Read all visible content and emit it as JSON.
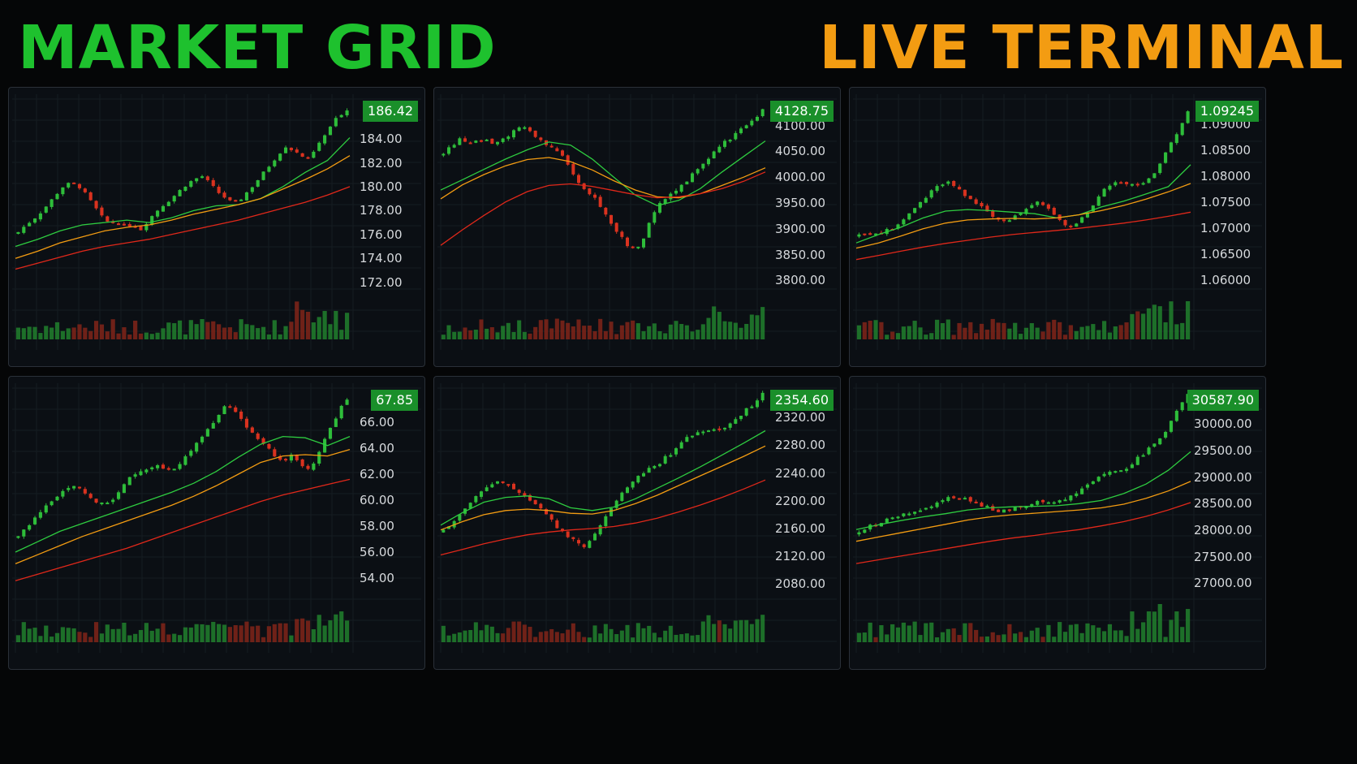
{
  "header": {
    "left_title": "MARKET GRID",
    "right_title": "LIVE TERMINAL"
  },
  "colors": {
    "bull": "#2ebd3a",
    "bear": "#d9321f",
    "ma_fast": "#2ecc40",
    "ma_mid": "#f39c12",
    "ma_slow": "#e0281a",
    "badge": "#1a8f2a",
    "title_left": "#1ec12e",
    "title_right": "#f39c12"
  },
  "chart_data": [
    {
      "type": "candlestick",
      "last_price": "186.42",
      "yticks": [
        "184.00",
        "182.00",
        "180.00",
        "178.00",
        "176.00",
        "174.00",
        "172.00"
      ],
      "ylim": [
        171.5,
        187.2
      ],
      "n_candles": 60,
      "close": [
        176.2,
        176.8,
        177.3,
        177.9,
        178.6,
        179.4,
        180.1,
        180.3,
        180.0,
        179.2,
        178.3,
        177.4,
        176.9,
        177.1,
        176.6,
        176.9,
        176.4,
        177.2,
        177.9,
        178.5,
        179.0,
        179.6,
        180.2,
        180.6,
        180.9,
        180.3,
        179.6,
        179.1,
        178.6,
        178.9,
        179.6,
        180.3,
        181.1,
        181.9,
        182.7,
        183.4,
        183.0,
        182.6,
        182.2,
        183.3,
        184.2,
        185.2,
        186.0,
        186.42
      ],
      "ma_fast": [
        175.0,
        175.6,
        176.3,
        176.8,
        177.0,
        177.2,
        177.0,
        177.4,
        178.0,
        178.4,
        178.5,
        179.0,
        180.0,
        181.2,
        182.2,
        184.1
      ],
      "ma_mid": [
        174.0,
        174.6,
        175.3,
        175.8,
        176.3,
        176.6,
        176.8,
        177.2,
        177.7,
        178.1,
        178.5,
        179.0,
        179.8,
        180.6,
        181.5,
        182.6
      ],
      "ma_slow": [
        173.1,
        173.6,
        174.1,
        174.6,
        175.0,
        175.3,
        175.6,
        176.0,
        176.4,
        176.8,
        177.2,
        177.7,
        178.2,
        178.7,
        179.3,
        180.0
      ]
    },
    {
      "type": "candlestick",
      "last_price": "4128.75",
      "yticks": [
        "4100.00",
        "4050.00",
        "4000.00",
        "3950.00",
        "3900.00",
        "3850.00",
        "3800.00"
      ],
      "ylim": [
        3785,
        4148
      ],
      "n_candles": 60,
      "close": [
        4045,
        4060,
        4072,
        4070,
        4068,
        4074,
        4066,
        4072,
        4080,
        4090,
        4098,
        4086,
        4072,
        4060,
        4050,
        4040,
        4010,
        3985,
        3968,
        3960,
        3935,
        3910,
        3890,
        3870,
        3860,
        3880,
        3920,
        3945,
        3962,
        3972,
        3985,
        4002,
        4020,
        4035,
        4050,
        4065,
        4075,
        4090,
        4100,
        4112,
        4128.75
      ],
      "ma_fast": [
        3975,
        3995,
        4015,
        4035,
        4053,
        4068,
        4062,
        4035,
        4000,
        3965,
        3945,
        3955,
        3978,
        4010,
        4040,
        4070
      ],
      "ma_mid": [
        3958,
        3985,
        4005,
        4022,
        4034,
        4038,
        4030,
        4014,
        3993,
        3975,
        3962,
        3960,
        3968,
        3984,
        4000,
        4018
      ],
      "ma_slow": [
        3868,
        3898,
        3926,
        3952,
        3972,
        3984,
        3987,
        3982,
        3974,
        3966,
        3960,
        3962,
        3968,
        3978,
        3992,
        4010
      ]
    },
    {
      "type": "candlestick",
      "last_price": "1.09245",
      "yticks": [
        "1.09000",
        "1.08500",
        "1.08000",
        "1.07500",
        "1.07000",
        "1.06500",
        "1.06000"
      ],
      "ylim": [
        1.0585,
        1.0945
      ],
      "n_candles": 60,
      "close": [
        1.0688,
        1.0692,
        1.0688,
        1.0695,
        1.0702,
        1.0716,
        1.0732,
        1.0748,
        1.0765,
        1.0778,
        1.079,
        1.0782,
        1.0768,
        1.0752,
        1.0741,
        1.073,
        1.0718,
        1.0712,
        1.0724,
        1.0736,
        1.0745,
        1.0751,
        1.0738,
        1.0718,
        1.07,
        1.0708,
        1.0724,
        1.0745,
        1.0768,
        1.0785,
        1.079,
        1.0786,
        1.078,
        1.0787,
        1.08,
        1.083,
        1.0862,
        1.0888,
        1.09245
      ],
      "ma_fast": [
        1.0672,
        1.0688,
        1.0702,
        1.072,
        1.0733,
        1.0736,
        1.0734,
        1.0731,
        1.0728,
        1.072,
        1.0726,
        1.0741,
        1.0752,
        1.0766,
        1.078,
        1.0822
      ],
      "ma_mid": [
        1.0662,
        1.0672,
        1.0685,
        1.0699,
        1.071,
        1.0716,
        1.0718,
        1.0719,
        1.0718,
        1.072,
        1.0726,
        1.0734,
        1.0744,
        1.0756,
        1.077,
        1.0786
      ],
      "ma_slow": [
        1.064,
        1.0648,
        1.0656,
        1.0664,
        1.0671,
        1.0677,
        1.0683,
        1.0688,
        1.0692,
        1.0696,
        1.07,
        1.0705,
        1.071,
        1.0716,
        1.0723,
        1.0731
      ]
    },
    {
      "type": "candlestick",
      "last_price": "67.85",
      "yticks": [
        "66.00",
        "64.00",
        "62.00",
        "60.00",
        "58.00",
        "56.00",
        "54.00"
      ],
      "ylim": [
        53.0,
        68.5
      ],
      "n_candles": 60,
      "close": [
        57.2,
        57.9,
        58.6,
        59.3,
        59.9,
        60.4,
        60.8,
        61.0,
        60.7,
        60.3,
        59.8,
        59.6,
        60.2,
        61.0,
        61.8,
        62.2,
        62.4,
        62.6,
        62.5,
        62.2,
        62.6,
        63.4,
        64.2,
        65.0,
        65.8,
        66.6,
        67.4,
        67.0,
        66.1,
        65.3,
        64.6,
        64.0,
        63.4,
        63.0,
        63.5,
        62.8,
        62.2,
        63.0,
        64.3,
        65.6,
        66.8,
        67.85
      ],
      "ma_fast": [
        56.0,
        56.8,
        57.6,
        58.2,
        58.8,
        59.4,
        60.0,
        60.6,
        61.3,
        62.2,
        63.3,
        64.3,
        64.9,
        64.8,
        64.2,
        64.9
      ],
      "ma_mid": [
        55.1,
        55.8,
        56.5,
        57.2,
        57.8,
        58.4,
        59.0,
        59.6,
        60.3,
        61.1,
        62.0,
        62.9,
        63.4,
        63.5,
        63.4,
        63.9
      ],
      "ma_slow": [
        53.8,
        54.3,
        54.8,
        55.3,
        55.8,
        56.3,
        56.9,
        57.5,
        58.1,
        58.7,
        59.3,
        59.9,
        60.4,
        60.8,
        61.2,
        61.6
      ]
    },
    {
      "type": "candlestick",
      "last_price": "2354.60",
      "yticks": [
        "2320.00",
        "2280.00",
        "2240.00",
        "2200.00",
        "2160.00",
        "2120.00",
        "2080.00"
      ],
      "ylim": [
        2070,
        2360
      ],
      "n_candles": 60,
      "close": [
        2158,
        2170,
        2184,
        2198,
        2212,
        2222,
        2230,
        2226,
        2218,
        2209,
        2200,
        2190,
        2176,
        2160,
        2150,
        2140,
        2135,
        2150,
        2172,
        2192,
        2210,
        2222,
        2234,
        2244,
        2250,
        2262,
        2272,
        2285,
        2296,
        2300,
        2302,
        2300,
        2305,
        2318,
        2330,
        2340,
        2354.6
      ],
      "ma_fast": [
        2165,
        2183,
        2198,
        2205,
        2207,
        2203,
        2190,
        2186,
        2191,
        2203,
        2218,
        2233,
        2249,
        2266,
        2283,
        2301
      ],
      "ma_mid": [
        2158,
        2170,
        2180,
        2186,
        2188,
        2186,
        2182,
        2181,
        2186,
        2196,
        2208,
        2222,
        2236,
        2250,
        2264,
        2279
      ],
      "ma_slow": [
        2122,
        2130,
        2138,
        2145,
        2151,
        2155,
        2158,
        2160,
        2163,
        2168,
        2175,
        2184,
        2194,
        2205,
        2217,
        2230
      ]
    },
    {
      "type": "candlestick",
      "last_price": "30587.90",
      "yticks": [
        "30000.00",
        "29500.00",
        "29000.00",
        "28500.00",
        "28000.00",
        "27500.00",
        "27000.00"
      ],
      "ylim": [
        26850,
        30650
      ],
      "n_candles": 60,
      "close": [
        27950,
        28050,
        28120,
        28180,
        28250,
        28300,
        28330,
        28380,
        28450,
        28560,
        28640,
        28610,
        28580,
        28520,
        28460,
        28400,
        28360,
        28400,
        28450,
        28500,
        28520,
        28500,
        28530,
        28580,
        28650,
        28750,
        28880,
        29000,
        29080,
        29100,
        29150,
        29300,
        29450,
        29600,
        29750,
        30000,
        30300,
        30587.9
      ],
      "ma_fast": [
        28010,
        28100,
        28180,
        28250,
        28310,
        28380,
        28420,
        28440,
        28450,
        28460,
        28500,
        28560,
        28690,
        28870,
        29130,
        29480
      ],
      "ma_mid": [
        27790,
        27870,
        27950,
        28030,
        28110,
        28190,
        28250,
        28290,
        28320,
        28350,
        28380,
        28420,
        28490,
        28600,
        28740,
        28920
      ],
      "ma_slow": [
        27370,
        27440,
        27510,
        27580,
        27650,
        27720,
        27790,
        27850,
        27900,
        27960,
        28010,
        28080,
        28160,
        28260,
        28380,
        28520
      ]
    }
  ]
}
